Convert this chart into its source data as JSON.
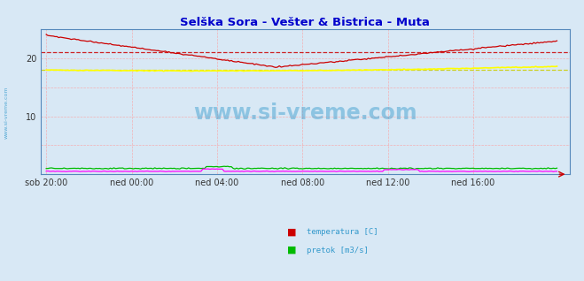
{
  "title": "Selška Sora - Vešter & Bistrica - Muta",
  "title_color": "#0000cc",
  "bg_color": "#d8e8f5",
  "plot_bg_color": "#d8e8f5",
  "ylim": [
    0,
    25
  ],
  "ytick_vals": [
    10,
    20
  ],
  "xtick_labels": [
    "sob 20:00",
    "ned 00:00",
    "ned 04:00",
    "ned 08:00",
    "ned 12:00",
    "ned 16:00"
  ],
  "xtick_positions": [
    0,
    48,
    96,
    144,
    192,
    240
  ],
  "grid_color": "#ff9999",
  "line1_color": "#cc0000",
  "line2_color": "#00bb00",
  "line3_color": "#ffff00",
  "line4_color": "#ff00ff",
  "avg1_color": "#cc0000",
  "avg3_color": "#cccc00",
  "avg1_val": 21.1,
  "avg3_val": 18.1,
  "legend_text_color": "#3399cc",
  "legend_bg": "#d8e8f5",
  "watermark": "www.si-vreme.com",
  "watermark_color": "#3399cc",
  "watermark_alpha": 0.45,
  "sidebar_text": "www.si-vreme.com",
  "sidebar_color": "#3399cc",
  "spine_color": "#5588bb",
  "n_points": 288,
  "legend_items": [
    {
      "color": "#cc0000",
      "label": "temperatura [C]"
    },
    {
      "color": "#00bb00",
      "label": "pretok [m3/s]"
    },
    {
      "color": "#ffffff",
      "label": ""
    },
    {
      "color": "#ffff00",
      "label": "temperatura [C]"
    },
    {
      "color": "#ff00ff",
      "label": "pretok [m3/s]"
    }
  ]
}
